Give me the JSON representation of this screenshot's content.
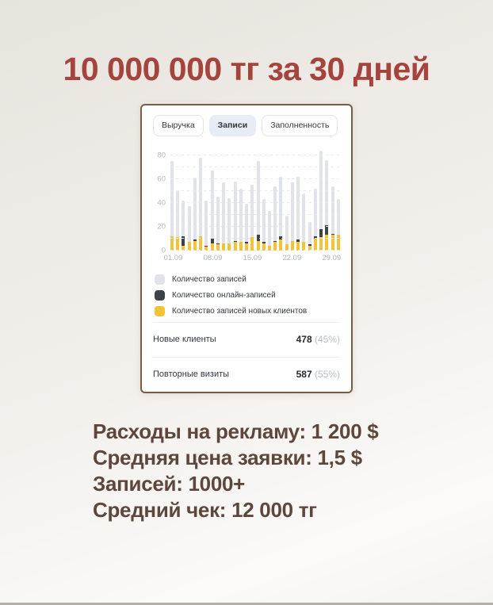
{
  "page": {
    "title": "10 000 000 тг за 30 дней",
    "footer_lines": [
      "Расходы на рекламу: 1 200 $",
      "Средняя цена заявки: 1,5 $",
      "Записей: 1000+",
      "Средний чек: 12 000 тг"
    ],
    "colors": {
      "title_red": "#a5443c",
      "footer_brown": "#5d473d",
      "card_border": "#7c5b44",
      "tab_active_bg": "#e7ecf6",
      "bar_gray": "#e2e3ea",
      "bar_dark": "#3e434b",
      "bar_yellow": "#f1c336"
    }
  },
  "dashboard": {
    "tabs": [
      {
        "label": "Выручка",
        "active": false
      },
      {
        "label": "Записи",
        "active": true
      },
      {
        "label": "Заполненность",
        "active": false
      }
    ],
    "legend": [
      {
        "label": "Количество записей",
        "color": "#e2e3ea"
      },
      {
        "label": "Количество онлайн-записей",
        "color": "#3e434b"
      },
      {
        "label": "Количество записей новых клиентов",
        "color": "#f1c336"
      }
    ],
    "stats": [
      {
        "label": "Новые клиенты",
        "value": "478",
        "percent": "(45%)"
      },
      {
        "label": "Повторные визиты",
        "value": "587",
        "percent": "(55%)"
      }
    ]
  },
  "chart_data": {
    "type": "bar",
    "stacked": true,
    "title": "",
    "xlabel": "",
    "ylabel": "",
    "ylim": [
      0,
      80
    ],
    "grid_step": 10,
    "y_tick_labels": [
      "0",
      "20",
      "40",
      "60",
      "80"
    ],
    "x_tick_labels": [
      "01.09",
      "08.09",
      "15.09",
      "22.09",
      "29.09"
    ],
    "x_tick_bar_index": [
      0,
      7,
      14,
      21,
      28
    ],
    "categories": [
      "01.09",
      "02.09",
      "03.09",
      "04.09",
      "05.09",
      "06.09",
      "07.09",
      "08.09",
      "09.09",
      "10.09",
      "11.09",
      "12.09",
      "13.09",
      "14.09",
      "15.09",
      "16.09",
      "17.09",
      "18.09",
      "19.09",
      "20.09",
      "21.09",
      "22.09",
      "23.09",
      "24.09",
      "25.09",
      "26.09",
      "27.09",
      "28.09",
      "29.09",
      "30.09"
    ],
    "series": [
      {
        "name": "Количество записей",
        "role": "total",
        "color": "#e2e3ea",
        "values": [
          75,
          50,
          42,
          37,
          61,
          78,
          42,
          67,
          45,
          57,
          44,
          58,
          52,
          39,
          55,
          75,
          43,
          33,
          54,
          62,
          29,
          57,
          62,
          48,
          24,
          52,
          84,
          76,
          54,
          43
        ]
      },
      {
        "name": "Количество онлайн-записей",
        "role": "online",
        "color": "#3e434b",
        "values": [
          0,
          0,
          8,
          0,
          1,
          0,
          1,
          4,
          1,
          0,
          0,
          1,
          0,
          1,
          0,
          5,
          1,
          0,
          1,
          3,
          0,
          0,
          2,
          0,
          1,
          2,
          7,
          8,
          1,
          0
        ]
      },
      {
        "name": "Количество записей новых клиентов",
        "role": "new_clients",
        "color": "#f1c336",
        "values": [
          12,
          11,
          4,
          7,
          8,
          12,
          3,
          6,
          5,
          6,
          6,
          7,
          7,
          6,
          11,
          8,
          6,
          4,
          7,
          9,
          5,
          8,
          7,
          7,
          4,
          10,
          11,
          13,
          13,
          13
        ]
      }
    ],
    "legend_position": "bottom"
  }
}
